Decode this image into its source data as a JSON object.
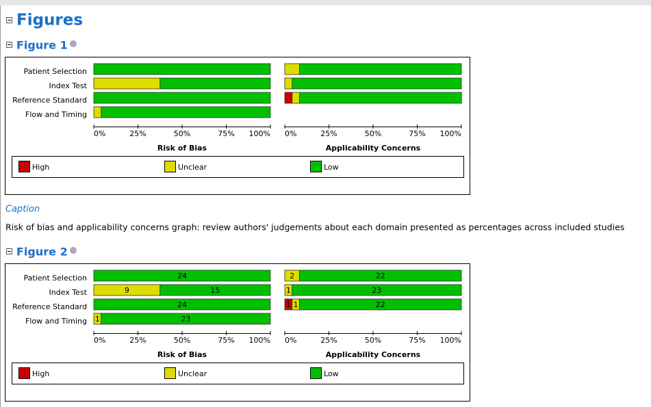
{
  "heading": "Figures",
  "figures": [
    {
      "title": "Figure 1",
      "caption_label": "Caption",
      "caption": "Risk of bias and applicability concerns graph: review authors' judgements about each domain presented as percentages across included studies"
    },
    {
      "title": "Figure 2"
    }
  ],
  "chart_data": [
    {
      "type": "bar",
      "orientation": "horizontal",
      "stacked": true,
      "show_value_labels": false,
      "x_label": "Risk of Bias",
      "categories": [
        "Patient Selection",
        "Index Test",
        "Reference Standard",
        "Flow and Timing"
      ],
      "series": [
        {
          "name": "High",
          "color": "#cc0000",
          "values": [
            0,
            0,
            0,
            0
          ]
        },
        {
          "name": "Unclear",
          "color": "#dddd00",
          "values": [
            0,
            37.5,
            0,
            4.2
          ]
        },
        {
          "name": "Low",
          "color": "#00c000",
          "values": [
            100,
            62.5,
            100,
            95.8
          ]
        }
      ],
      "xlim": [
        0,
        100
      ],
      "xticks": [
        {
          "value": 0,
          "label": "0%"
        },
        {
          "value": 25,
          "label": "25%"
        },
        {
          "value": 50,
          "label": "50%"
        },
        {
          "value": 75,
          "label": "75%"
        },
        {
          "value": 100,
          "label": "100%"
        }
      ]
    },
    {
      "type": "bar",
      "orientation": "horizontal",
      "stacked": true,
      "show_value_labels": false,
      "x_label": "Applicability Concerns",
      "series": [
        {
          "name": "High",
          "color": "#cc0000",
          "values": [
            0,
            0,
            4.2
          ]
        },
        {
          "name": "Unclear",
          "color": "#dddd00",
          "values": [
            8.3,
            4.2,
            4.2
          ]
        },
        {
          "name": "Low",
          "color": "#00c000",
          "values": [
            91.7,
            95.8,
            91.7
          ]
        }
      ],
      "xlim": [
        0,
        100
      ],
      "xticks": [
        {
          "value": 0,
          "label": "0%"
        },
        {
          "value": 25,
          "label": "25%"
        },
        {
          "value": 50,
          "label": "50%"
        },
        {
          "value": 75,
          "label": "75%"
        },
        {
          "value": 100,
          "label": "100%"
        }
      ]
    },
    {
      "type": "bar",
      "orientation": "horizontal",
      "stacked": true,
      "show_value_labels": true,
      "x_label": "Risk of Bias",
      "categories": [
        "Patient Selection",
        "Index Test",
        "Reference Standard",
        "Flow and Timing"
      ],
      "series": [
        {
          "name": "High",
          "color": "#cc0000",
          "values": [
            0,
            0,
            0,
            0
          ]
        },
        {
          "name": "Unclear",
          "color": "#dddd00",
          "values": [
            0,
            9,
            0,
            1
          ]
        },
        {
          "name": "Low",
          "color": "#00c000",
          "values": [
            24,
            15,
            24,
            23
          ]
        }
      ],
      "xlim": [
        0,
        24
      ],
      "xticks": [
        {
          "value": 0,
          "label": "0%"
        },
        {
          "value": 6,
          "label": "25%"
        },
        {
          "value": 12,
          "label": "50%"
        },
        {
          "value": 18,
          "label": "75%"
        },
        {
          "value": 24,
          "label": "100%"
        }
      ]
    },
    {
      "type": "bar",
      "orientation": "horizontal",
      "stacked": true,
      "show_value_labels": true,
      "x_label": "Applicability Concerns",
      "series": [
        {
          "name": "High",
          "color": "#cc0000",
          "values": [
            0,
            0,
            1
          ]
        },
        {
          "name": "Unclear",
          "color": "#dddd00",
          "values": [
            2,
            1,
            1
          ]
        },
        {
          "name": "Low",
          "color": "#00c000",
          "values": [
            22,
            23,
            22
          ]
        }
      ],
      "xlim": [
        0,
        24
      ],
      "xticks": [
        {
          "value": 0,
          "label": "0%"
        },
        {
          "value": 6,
          "label": "25%"
        },
        {
          "value": 12,
          "label": "50%"
        },
        {
          "value": 18,
          "label": "75%"
        },
        {
          "value": 24,
          "label": "100%"
        }
      ]
    }
  ]
}
